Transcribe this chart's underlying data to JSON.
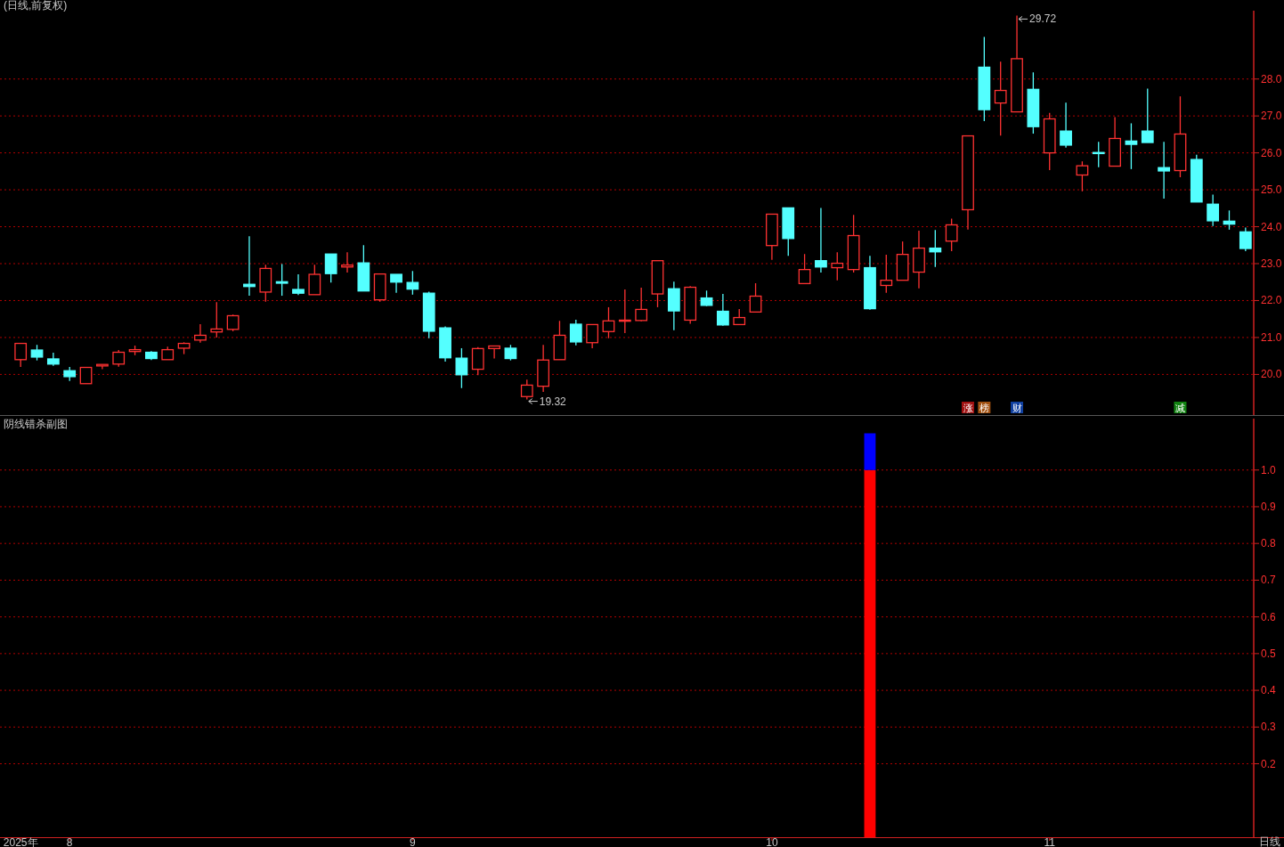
{
  "chart_data": [
    {
      "type": "candlestick",
      "title": "(日线,前复权)",
      "tick_labels": "y",
      "grid": "y",
      "categories": [
        null,
        null,
        null,
        null,
        null,
        null,
        null,
        null,
        null,
        null,
        null,
        null,
        null,
        null,
        null,
        null,
        null,
        null,
        null,
        null,
        null,
        null,
        null,
        null,
        null,
        null,
        null,
        null,
        null,
        null,
        null,
        null,
        null,
        null,
        null,
        null,
        null,
        null,
        null,
        null,
        null,
        null,
        null,
        null,
        null,
        null,
        null,
        null,
        null,
        null,
        null,
        null,
        null,
        null,
        null,
        null,
        null,
        null,
        null,
        null,
        null,
        null,
        null,
        null,
        null,
        null,
        null,
        null,
        null,
        null,
        null,
        null,
        null,
        null,
        null,
        null
      ],
      "ylim": [
        18.9,
        29.85
      ],
      "yticks": [
        {
          "value": 20,
          "label": "20.0"
        },
        {
          "value": 21,
          "label": "21.0"
        },
        {
          "value": 22,
          "label": "22.0"
        },
        {
          "value": 23,
          "label": "23.0"
        },
        {
          "value": 24,
          "label": "24.0"
        },
        {
          "value": 25,
          "label": "25.0"
        },
        {
          "value": 26,
          "label": "26.0"
        },
        {
          "value": 27,
          "label": "27.0"
        },
        {
          "value": 28,
          "label": "28.0"
        }
      ],
      "ohlc": [
        [
          20.4,
          20.84,
          20.2,
          20.84
        ],
        [
          20.66,
          20.8,
          20.38,
          20.47
        ],
        [
          20.42,
          20.59,
          20.23,
          20.28
        ],
        [
          20.1,
          20.2,
          19.82,
          19.94
        ],
        [
          19.75,
          20.19,
          19.75,
          20.19
        ],
        [
          20.23,
          20.27,
          20.14,
          20.27
        ],
        [
          20.28,
          20.66,
          20.21,
          20.6
        ],
        [
          20.62,
          20.78,
          20.52,
          20.67
        ],
        [
          20.6,
          20.63,
          20.39,
          20.43
        ],
        [
          20.4,
          20.75,
          20.4,
          20.67
        ],
        [
          20.71,
          20.87,
          20.55,
          20.84
        ],
        [
          20.93,
          21.36,
          20.86,
          21.06
        ],
        [
          21.15,
          21.96,
          21.0,
          21.23
        ],
        [
          21.22,
          21.62,
          21.17,
          21.59
        ],
        [
          22.44,
          23.74,
          22.13,
          22.38
        ],
        [
          22.23,
          22.97,
          21.97,
          22.87
        ],
        [
          22.51,
          22.99,
          22.13,
          22.47
        ],
        [
          22.3,
          22.71,
          22.15,
          22.2
        ],
        [
          22.16,
          22.97,
          22.16,
          22.71
        ],
        [
          23.26,
          23.26,
          22.49,
          22.73
        ],
        [
          22.91,
          23.31,
          22.76,
          22.96
        ],
        [
          23.02,
          23.5,
          22.26,
          22.26
        ],
        [
          22.02,
          22.72,
          21.97,
          22.72
        ],
        [
          22.71,
          22.71,
          22.21,
          22.5
        ],
        [
          22.49,
          22.8,
          22.16,
          22.31
        ],
        [
          22.2,
          22.24,
          20.98,
          21.17
        ],
        [
          21.26,
          21.3,
          20.35,
          20.45
        ],
        [
          20.44,
          20.71,
          19.63,
          19.99
        ],
        [
          20.14,
          20.74,
          19.98,
          20.7
        ],
        [
          20.7,
          20.77,
          20.43,
          20.77
        ],
        [
          20.71,
          20.8,
          20.38,
          20.43
        ],
        [
          19.4,
          19.86,
          19.32,
          19.71
        ],
        [
          19.68,
          20.8,
          19.53,
          20.39
        ],
        [
          20.4,
          21.45,
          20.4,
          21.06
        ],
        [
          21.36,
          21.48,
          20.79,
          20.88
        ],
        [
          20.86,
          21.35,
          20.71,
          21.35
        ],
        [
          21.16,
          21.82,
          20.98,
          21.45
        ],
        [
          21.46,
          22.3,
          21.12,
          21.47
        ],
        [
          21.46,
          22.35,
          21.44,
          21.76
        ],
        [
          22.18,
          23.08,
          21.82,
          23.08
        ],
        [
          22.32,
          22.51,
          21.2,
          21.72
        ],
        [
          21.47,
          22.39,
          21.37,
          22.36
        ],
        [
          22.07,
          22.27,
          21.85,
          21.87
        ],
        [
          21.71,
          22.18,
          21.32,
          21.34
        ],
        [
          21.35,
          21.77,
          21.35,
          21.54
        ],
        [
          21.69,
          22.47,
          21.69,
          22.12
        ],
        [
          23.49,
          24.34,
          23.1,
          24.34
        ],
        [
          24.51,
          24.51,
          23.21,
          23.68
        ],
        [
          22.46,
          23.26,
          22.46,
          22.84
        ],
        [
          23.08,
          24.51,
          22.76,
          22.91
        ],
        [
          22.89,
          23.31,
          22.55,
          23.01
        ],
        [
          22.84,
          24.32,
          22.76,
          23.76
        ],
        [
          22.89,
          23.21,
          21.75,
          21.78
        ],
        [
          22.41,
          23.24,
          22.21,
          22.55
        ],
        [
          22.55,
          23.6,
          22.55,
          23.25
        ],
        [
          22.77,
          23.89,
          22.33,
          23.42
        ],
        [
          23.42,
          23.91,
          22.91,
          23.32
        ],
        [
          23.61,
          24.22,
          23.34,
          24.05
        ],
        [
          24.46,
          26.46,
          23.92,
          26.46
        ],
        [
          28.32,
          29.14,
          26.86,
          27.17
        ],
        [
          27.35,
          28.47,
          26.47,
          27.69
        ],
        [
          27.11,
          29.72,
          27.11,
          28.55
        ],
        [
          27.72,
          28.18,
          26.52,
          26.71
        ],
        [
          26.0,
          27.08,
          25.53,
          26.92
        ],
        [
          26.59,
          27.36,
          26.14,
          26.21
        ],
        [
          25.4,
          25.77,
          24.96,
          25.65
        ],
        [
          26.01,
          26.3,
          25.61,
          26.0
        ],
        [
          25.64,
          26.97,
          25.64,
          26.39
        ],
        [
          26.32,
          26.8,
          25.56,
          26.23
        ],
        [
          26.59,
          27.74,
          26.28,
          26.28
        ],
        [
          25.6,
          26.3,
          24.76,
          25.51
        ],
        [
          25.52,
          27.53,
          25.34,
          26.51
        ],
        [
          25.82,
          25.95,
          24.67,
          24.67
        ],
        [
          24.61,
          24.87,
          24.02,
          24.16
        ],
        [
          24.15,
          24.44,
          23.92,
          24.07
        ],
        [
          23.86,
          23.98,
          23.34,
          23.41
        ]
      ],
      "colors": [
        "#ff3232",
        "#54ffff",
        "#54ffff",
        "#54ffff",
        "#ff3232",
        "#ff3232",
        "#ff3232",
        "#ff3232",
        "#54ffff",
        "#ff3232",
        "#ff3232",
        "#ff3232",
        "#ff3232",
        "#ff3232",
        "#54ffff",
        "#ff3232",
        "#54ffff",
        "#54ffff",
        "#ff3232",
        "#54ffff",
        "#ff3232",
        "#54ffff",
        "#ff3232",
        "#54ffff",
        "#54ffff",
        "#54ffff",
        "#54ffff",
        "#54ffff",
        "#ff3232",
        "#ff3232",
        "#54ffff",
        "#ff3232",
        "#ff3232",
        "#ff3232",
        "#54ffff",
        "#ff3232",
        "#ff3232",
        "#ff3232",
        "#ff3232",
        "#ff3232",
        "#54ffff",
        "#ff3232",
        "#54ffff",
        "#54ffff",
        "#ff3232",
        "#ff3232",
        "#ff3232",
        "#54ffff",
        "#ff3232",
        "#54ffff",
        "#ff3232",
        "#ff3232",
        "#54ffff",
        "#ff3232",
        "#ff3232",
        "#ff3232",
        "#54ffff",
        "#ff3232",
        "#ff3232",
        "#54ffff",
        "#ff3232",
        "#ff3232",
        "#54ffff",
        "#ff3232",
        "#54ffff",
        "#ff3232",
        "#54ffff",
        "#ff3232",
        "#54ffff",
        "#54ffff",
        "#54ffff",
        "#ff3232",
        "#54ffff",
        "#54ffff",
        "#54ffff",
        "#54ffff"
      ],
      "annotations": [
        "29.72",
        "19.32",
        "涨",
        "榜",
        "财",
        "减"
      ]
    },
    {
      "type": "bar",
      "title": "阴线错杀副图",
      "stacked": true,
      "grid": "y",
      "categories": [
        "2025年",
        null,
        null,
        "8",
        null,
        null,
        null,
        null,
        null,
        null,
        null,
        null,
        null,
        null,
        null,
        null,
        null,
        null,
        null,
        null,
        null,
        null,
        null,
        null,
        "9",
        null,
        null,
        null,
        null,
        null,
        null,
        null,
        null,
        null,
        null,
        null,
        null,
        null,
        null,
        null,
        null,
        null,
        null,
        null,
        null,
        null,
        "10",
        null,
        null,
        null,
        null,
        null,
        null,
        null,
        null,
        null,
        null,
        null,
        null,
        null,
        null,
        null,
        null,
        "11",
        null,
        null,
        null,
        null,
        null,
        null,
        null,
        null,
        null,
        null,
        null,
        null
      ],
      "ylim": [
        0,
        1.14
      ],
      "yticks": [
        {
          "value": 0.2,
          "label": "0.2"
        },
        {
          "value": 0.3,
          "label": "0.3"
        },
        {
          "value": 0.4,
          "label": "0.4"
        },
        {
          "value": 0.5,
          "label": "0.5"
        },
        {
          "value": 0.6,
          "label": "0.6"
        },
        {
          "value": 0.7,
          "label": "0.7"
        },
        {
          "value": 0.8,
          "label": "0.8"
        },
        {
          "value": 0.9,
          "label": "0.9"
        },
        {
          "value": 1.0,
          "label": "1.0"
        }
      ],
      "series": [
        {
          "color": "#ff0000",
          "values": [
            null,
            null,
            null,
            null,
            null,
            null,
            null,
            null,
            null,
            null,
            null,
            null,
            null,
            null,
            null,
            null,
            null,
            null,
            null,
            null,
            null,
            null,
            null,
            null,
            null,
            null,
            null,
            null,
            null,
            null,
            null,
            null,
            null,
            null,
            null,
            null,
            null,
            null,
            null,
            null,
            null,
            null,
            null,
            null,
            null,
            null,
            null,
            null,
            null,
            null,
            null,
            null,
            1.0,
            null,
            null,
            null,
            null,
            null,
            null,
            null,
            null,
            null,
            null,
            null,
            null,
            null,
            null,
            null,
            null,
            null,
            null,
            null,
            null,
            null,
            null,
            null
          ]
        },
        {
          "color": "#0000ff",
          "values": [
            null,
            null,
            null,
            null,
            null,
            null,
            null,
            null,
            null,
            null,
            null,
            null,
            null,
            null,
            null,
            null,
            null,
            null,
            null,
            null,
            null,
            null,
            null,
            null,
            null,
            null,
            null,
            null,
            null,
            null,
            null,
            null,
            null,
            null,
            null,
            null,
            null,
            null,
            null,
            null,
            null,
            null,
            null,
            null,
            null,
            null,
            null,
            null,
            null,
            null,
            null,
            null,
            0.1,
            null,
            null,
            null,
            null,
            null,
            null,
            null,
            null,
            null,
            null,
            null,
            null,
            null,
            null,
            null,
            null,
            null,
            null,
            null,
            null,
            null,
            null,
            null
          ]
        }
      ],
      "annotations": [
        "日线"
      ]
    }
  ]
}
